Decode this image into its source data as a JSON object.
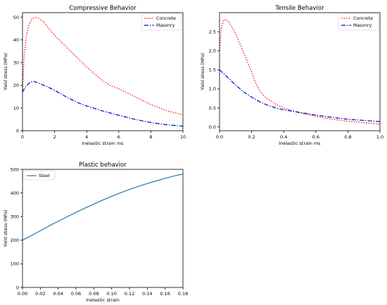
{
  "chart_data": [
    {
      "type": "line",
      "title": "Compressive Behavior",
      "xlabel": "Inelastic strain mε",
      "ylabel": "Yield stress (MPa)",
      "xlim": [
        0,
        10
      ],
      "ylim": [
        0,
        52
      ],
      "xticks": [
        0,
        2,
        4,
        6,
        8,
        10
      ],
      "yticks": [
        0,
        10,
        20,
        30,
        40,
        50
      ],
      "grid": false,
      "legend": "top-right",
      "series": [
        {
          "name": "Concrete",
          "color": "#ff0000",
          "style": "dotted",
          "x": [
            0,
            0.1,
            0.25,
            0.4,
            0.6,
            0.8,
            1.0,
            1.3,
            1.6,
            2.0,
            2.5,
            3.0,
            3.5,
            4.0,
            4.5,
            5.0,
            5.5,
            6.0,
            7.0,
            8.0,
            9.0,
            10.0
          ],
          "y": [
            17,
            33,
            42,
            46.5,
            49.5,
            50,
            49.5,
            48,
            45.5,
            42,
            38.5,
            35,
            31.5,
            28,
            25,
            22,
            19.8,
            18.5,
            15,
            11.5,
            8.8,
            7
          ]
        },
        {
          "name": "Masonry",
          "color": "#0000cc",
          "style": "dashdot",
          "x": [
            0,
            0.2,
            0.5,
            0.7,
            1.0,
            1.5,
            2.0,
            2.5,
            3.0,
            3.5,
            4.0,
            5.0,
            6.0,
            7.0,
            8.0,
            9.0,
            10.0
          ],
          "y": [
            17,
            19.5,
            21.5,
            21.7,
            21,
            19.5,
            17.8,
            15.8,
            13.9,
            12.2,
            10.9,
            8.7,
            6.8,
            5.0,
            3.6,
            2.6,
            2.0
          ]
        }
      ]
    },
    {
      "type": "line",
      "title": "Tensile Behavior",
      "xlabel": "Inelastic strain mε",
      "ylabel": "Yield stress (MPa)",
      "xlim": [
        0,
        1.0
      ],
      "ylim": [
        -0.1,
        3.0
      ],
      "xticks": [
        0.0,
        0.2,
        0.4,
        0.6,
        0.8,
        1.0
      ],
      "yticks": [
        0.0,
        0.5,
        1.0,
        1.5,
        2.0,
        2.5
      ],
      "grid": false,
      "legend": "top-right",
      "series": [
        {
          "name": "Concrete",
          "color": "#ff0000",
          "style": "dotted",
          "x": [
            0,
            0.01,
            0.025,
            0.04,
            0.06,
            0.08,
            0.1,
            0.12,
            0.15,
            0.18,
            0.2,
            0.22,
            0.25,
            0.28,
            0.3,
            0.35,
            0.4,
            0.45,
            0.5,
            0.6,
            0.7,
            0.8,
            0.9,
            1.0
          ],
          "y": [
            2.0,
            2.55,
            2.8,
            2.82,
            2.75,
            2.6,
            2.45,
            2.25,
            1.95,
            1.65,
            1.45,
            1.2,
            0.95,
            0.8,
            0.73,
            0.6,
            0.5,
            0.43,
            0.37,
            0.28,
            0.2,
            0.15,
            0.11,
            0.07
          ]
        },
        {
          "name": "Masonry",
          "color": "#0000cc",
          "style": "dashdot",
          "x": [
            0,
            0.02,
            0.05,
            0.08,
            0.1,
            0.15,
            0.2,
            0.25,
            0.3,
            0.35,
            0.4,
            0.5,
            0.6,
            0.7,
            0.8,
            0.9,
            1.0
          ],
          "y": [
            1.5,
            1.42,
            1.3,
            1.18,
            1.1,
            0.92,
            0.78,
            0.66,
            0.57,
            0.5,
            0.45,
            0.38,
            0.31,
            0.25,
            0.2,
            0.17,
            0.14
          ]
        }
      ]
    },
    {
      "type": "line",
      "title": "Plastic behavior",
      "xlabel": "Inelastic strain",
      "ylabel": "Yield stress (MPa)",
      "xlim": [
        0,
        0.18
      ],
      "ylim": [
        0,
        500
      ],
      "xticks": [
        0.0,
        0.02,
        0.04,
        0.06,
        0.08,
        0.1,
        0.12,
        0.14,
        0.16,
        0.18
      ],
      "yticks": [
        0,
        100,
        200,
        300,
        400,
        500
      ],
      "grid": false,
      "legend": "top-left",
      "series": [
        {
          "name": "Steel",
          "color": "#1f77b4",
          "style": "solid",
          "x": [
            0,
            0.01,
            0.02,
            0.03,
            0.04,
            0.05,
            0.06,
            0.07,
            0.08,
            0.09,
            0.1,
            0.11,
            0.12,
            0.13,
            0.14,
            0.15,
            0.16,
            0.17,
            0.18
          ],
          "y": [
            200,
            220,
            240,
            261,
            280,
            299,
            318,
            336,
            353,
            370,
            386,
            401,
            415,
            428,
            440,
            451,
            462,
            472,
            480
          ]
        }
      ]
    }
  ]
}
